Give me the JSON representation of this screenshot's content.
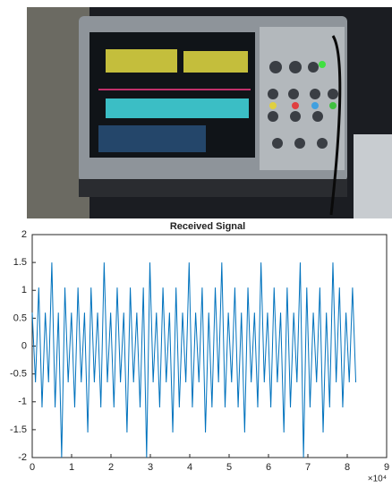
{
  "chart_data": {
    "type": "line",
    "title": "Received Signal",
    "x_multiplier": "×10⁴",
    "x": [
      0,
      0.083,
      0.166,
      0.249,
      0.332,
      0.415,
      0.498,
      0.581,
      0.664,
      0.747,
      0.83,
      0.913,
      0.996,
      1.079,
      1.162,
      1.245,
      1.328,
      1.411,
      1.494,
      1.577,
      1.66,
      1.743,
      1.826,
      1.909,
      1.992,
      2.075,
      2.158,
      2.241,
      2.324,
      2.407,
      2.49,
      2.573,
      2.656,
      2.739,
      2.822,
      2.905,
      2.988,
      3.071,
      3.154,
      3.237,
      3.32,
      3.403,
      3.486,
      3.569,
      3.652,
      3.735,
      3.818,
      3.901,
      3.984,
      4.067,
      4.15,
      4.233,
      4.316,
      4.399,
      4.482,
      4.565,
      4.648,
      4.731,
      4.814,
      4.897,
      4.98,
      5.063,
      5.146,
      5.229,
      5.312,
      5.395,
      5.478,
      5.561,
      5.644,
      5.727,
      5.81,
      5.893,
      5.976,
      6.059,
      6.142,
      6.225,
      6.308,
      6.391,
      6.474,
      6.557,
      6.64,
      6.723,
      6.806,
      6.889,
      6.972,
      7.055,
      7.138,
      7.221,
      7.304,
      7.387,
      7.47,
      7.553,
      7.636,
      7.719,
      7.802,
      7.885,
      7.968,
      8.051,
      8.134,
      8.217
    ],
    "values": [
      0.6,
      -0.65,
      1.05,
      -1.1,
      0.6,
      -0.65,
      1.5,
      -1.1,
      0.6,
      -2,
      1.05,
      -0.65,
      0.6,
      -1.1,
      1.05,
      -0.65,
      0.6,
      -1.55,
      1.05,
      -0.65,
      0.6,
      -1.1,
      1.5,
      -0.65,
      0.6,
      -1.1,
      1.05,
      -0.65,
      0.6,
      -1.55,
      1.05,
      -0.65,
      0.6,
      -1.1,
      1.05,
      -2,
      1.5,
      -0.65,
      0.6,
      -1.1,
      1.05,
      -0.65,
      0.6,
      -1.55,
      1.05,
      -1.1,
      0.6,
      -0.65,
      1.5,
      -1.1,
      0.6,
      -0.65,
      1.05,
      -1.55,
      0.6,
      -1.1,
      1.05,
      -0.65,
      1.5,
      -1.1,
      0.6,
      -0.65,
      1.05,
      -1.1,
      0.6,
      -1.55,
      1.05,
      -0.65,
      0.6,
      -1.1,
      1.5,
      -0.65,
      0.6,
      -1.1,
      1.05,
      -0.65,
      0.6,
      -1.55,
      1.05,
      -1.1,
      0.6,
      -0.65,
      1.5,
      -2,
      1.05,
      -1.1,
      0.6,
      -0.65,
      1.05,
      -1.55,
      0.6,
      -1.1,
      1.5,
      -0.65,
      1.05,
      -1.1,
      0.6,
      -0.65,
      1.05,
      -0.65
    ],
    "color": "#0072bd",
    "xlim": [
      0,
      9
    ],
    "xticks": [
      0,
      1,
      2,
      3,
      4,
      5,
      6,
      7,
      8,
      9
    ],
    "ylim": [
      -2,
      2
    ],
    "yticks": [
      -2,
      -1.5,
      -1,
      -0.5,
      0,
      0.5,
      1,
      1.5,
      2
    ],
    "grid": false
  }
}
